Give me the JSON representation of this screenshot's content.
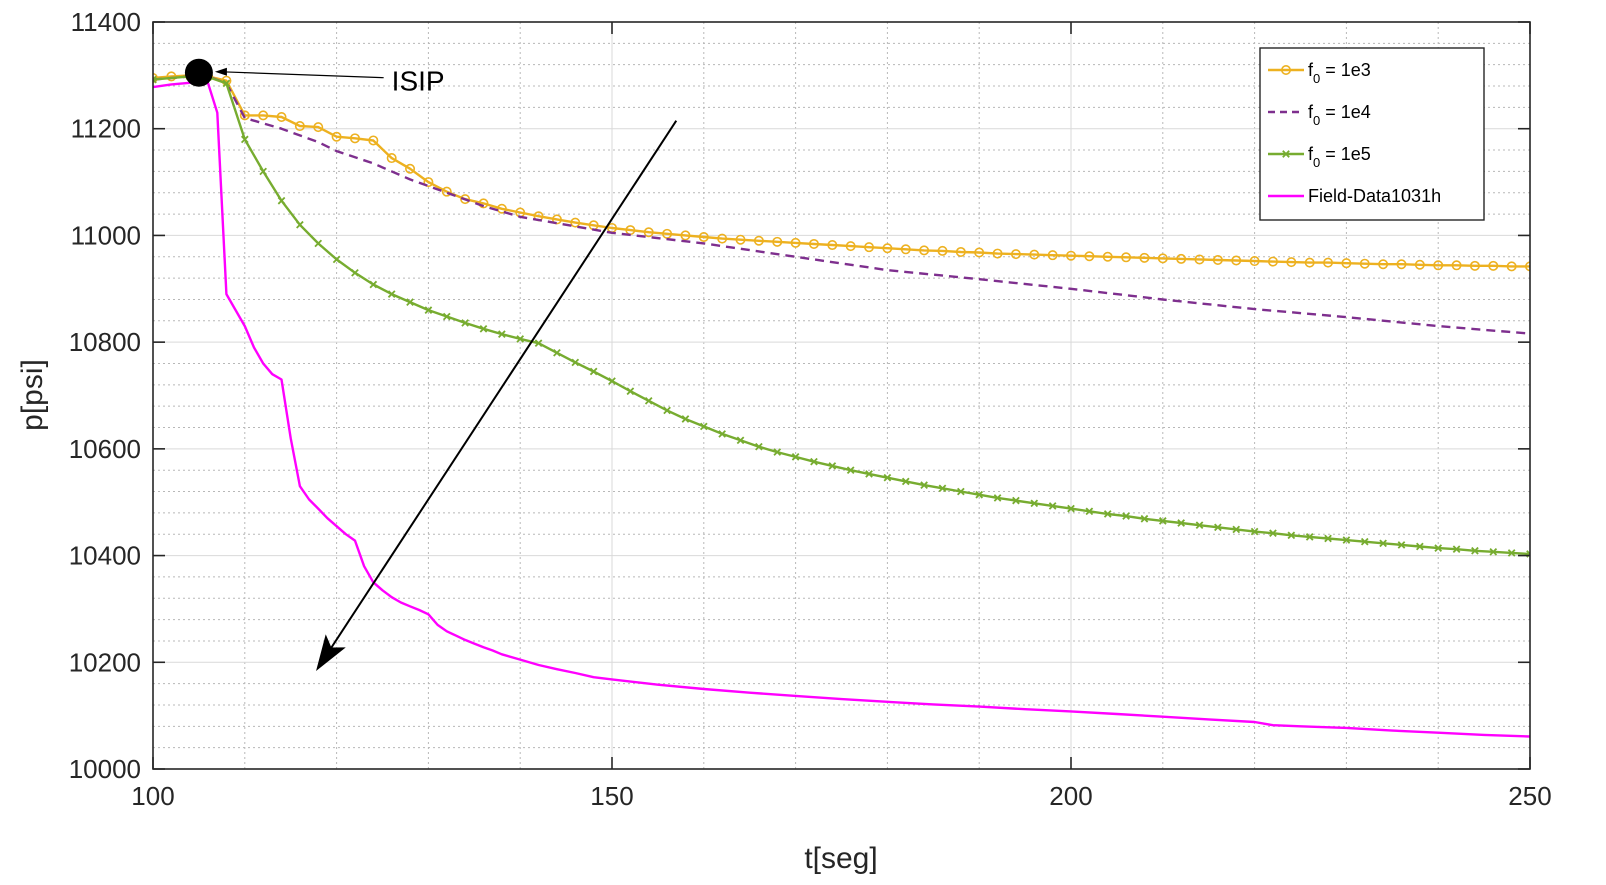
{
  "chart_data": {
    "type": "line",
    "title": "",
    "xlabel": "t[seg]",
    "ylabel": "p[psi]",
    "xlim": [
      100,
      250
    ],
    "ylim": [
      10000,
      11400
    ],
    "x_ticks": [
      100,
      150,
      200,
      250
    ],
    "y_ticks": [
      10000,
      10200,
      10400,
      10600,
      10800,
      11000,
      11200,
      11400
    ],
    "grid": true,
    "minor_grid": true,
    "legend_position": "top-right",
    "series": [
      {
        "name_main": "f",
        "name_sub": "0",
        "name_rest": " = 1e3",
        "color": "#EDB120",
        "line_style": "solid",
        "marker": "circle",
        "points": [
          [
            100,
            11295
          ],
          [
            102,
            11298
          ],
          [
            104,
            11300
          ],
          [
            106,
            11298
          ],
          [
            108,
            11290
          ],
          [
            110,
            11225
          ],
          [
            112,
            11225
          ],
          [
            114,
            11222
          ],
          [
            116,
            11205
          ],
          [
            118,
            11203
          ],
          [
            120,
            11185
          ],
          [
            122,
            11182
          ],
          [
            124,
            11178
          ],
          [
            126,
            11145
          ],
          [
            128,
            11125
          ],
          [
            130,
            11100
          ],
          [
            132,
            11082
          ],
          [
            134,
            11068
          ],
          [
            136,
            11060
          ],
          [
            138,
            11050
          ],
          [
            140,
            11043
          ],
          [
            142,
            11036
          ],
          [
            144,
            11030
          ],
          [
            146,
            11024
          ],
          [
            148,
            11019
          ],
          [
            150,
            11014
          ],
          [
            152,
            11010
          ],
          [
            154,
            11006
          ],
          [
            156,
            11003
          ],
          [
            158,
            11000
          ],
          [
            160,
            10997
          ],
          [
            162,
            10994
          ],
          [
            164,
            10992
          ],
          [
            166,
            10990
          ],
          [
            168,
            10988
          ],
          [
            170,
            10986
          ],
          [
            172,
            10984
          ],
          [
            174,
            10982
          ],
          [
            176,
            10980
          ],
          [
            178,
            10978
          ],
          [
            180,
            10976
          ],
          [
            182,
            10974
          ],
          [
            184,
            10972
          ],
          [
            186,
            10971
          ],
          [
            188,
            10969
          ],
          [
            190,
            10968
          ],
          [
            192,
            10966
          ],
          [
            194,
            10965
          ],
          [
            196,
            10964
          ],
          [
            198,
            10963
          ],
          [
            200,
            10962
          ],
          [
            202,
            10961
          ],
          [
            204,
            10960
          ],
          [
            206,
            10959
          ],
          [
            208,
            10958
          ],
          [
            210,
            10957
          ],
          [
            212,
            10956
          ],
          [
            214,
            10955
          ],
          [
            216,
            10954
          ],
          [
            218,
            10953
          ],
          [
            220,
            10952
          ],
          [
            222,
            10951
          ],
          [
            224,
            10950
          ],
          [
            226,
            10949
          ],
          [
            228,
            10949
          ],
          [
            230,
            10948
          ],
          [
            232,
            10947
          ],
          [
            234,
            10946
          ],
          [
            236,
            10946
          ],
          [
            238,
            10945
          ],
          [
            240,
            10944
          ],
          [
            242,
            10944
          ],
          [
            244,
            10943
          ],
          [
            246,
            10943
          ],
          [
            248,
            10942
          ],
          [
            250,
            10942
          ]
        ]
      },
      {
        "name_main": "f",
        "name_sub": "0",
        "name_rest": " = 1e4",
        "color": "#7E2F8E",
        "line_style": "dashed",
        "marker": "none",
        "points": [
          [
            100,
            11292
          ],
          [
            104,
            11298
          ],
          [
            106,
            11298
          ],
          [
            108,
            11285
          ],
          [
            110,
            11220
          ],
          [
            114,
            11200
          ],
          [
            118,
            11175
          ],
          [
            120,
            11158
          ],
          [
            124,
            11135
          ],
          [
            128,
            11105
          ],
          [
            132,
            11080
          ],
          [
            136,
            11055
          ],
          [
            140,
            11035
          ],
          [
            150,
            11005
          ],
          [
            160,
            10985
          ],
          [
            170,
            10960
          ],
          [
            180,
            10935
          ],
          [
            190,
            10918
          ],
          [
            200,
            10900
          ],
          [
            210,
            10880
          ],
          [
            220,
            10862
          ],
          [
            230,
            10847
          ],
          [
            240,
            10830
          ],
          [
            250,
            10816
          ]
        ]
      },
      {
        "name_main": "f",
        "name_sub": "0",
        "name_rest": " = 1e5",
        "color": "#77AC30",
        "line_style": "solid",
        "marker": "x",
        "points": [
          [
            100,
            11292
          ],
          [
            104,
            11298
          ],
          [
            106,
            11297
          ],
          [
            108,
            11285
          ],
          [
            110,
            11180
          ],
          [
            112,
            11120
          ],
          [
            114,
            11065
          ],
          [
            116,
            11020
          ],
          [
            118,
            10985
          ],
          [
            120,
            10955
          ],
          [
            122,
            10930
          ],
          [
            124,
            10908
          ],
          [
            126,
            10890
          ],
          [
            128,
            10875
          ],
          [
            130,
            10860
          ],
          [
            132,
            10848
          ],
          [
            134,
            10836
          ],
          [
            136,
            10825
          ],
          [
            138,
            10815
          ],
          [
            140,
            10806
          ],
          [
            142,
            10798
          ],
          [
            144,
            10780
          ],
          [
            146,
            10762
          ],
          [
            148,
            10745
          ],
          [
            150,
            10727
          ],
          [
            152,
            10708
          ],
          [
            154,
            10690
          ],
          [
            156,
            10672
          ],
          [
            158,
            10656
          ],
          [
            160,
            10642
          ],
          [
            162,
            10628
          ],
          [
            164,
            10616
          ],
          [
            166,
            10604
          ],
          [
            168,
            10594
          ],
          [
            170,
            10585
          ],
          [
            172,
            10576
          ],
          [
            174,
            10568
          ],
          [
            176,
            10560
          ],
          [
            178,
            10553
          ],
          [
            180,
            10546
          ],
          [
            182,
            10539
          ],
          [
            184,
            10532
          ],
          [
            186,
            10526
          ],
          [
            188,
            10520
          ],
          [
            190,
            10514
          ],
          [
            192,
            10508
          ],
          [
            194,
            10503
          ],
          [
            196,
            10498
          ],
          [
            198,
            10493
          ],
          [
            200,
            10488
          ],
          [
            202,
            10483
          ],
          [
            204,
            10478
          ],
          [
            206,
            10474
          ],
          [
            208,
            10469
          ],
          [
            210,
            10465
          ],
          [
            212,
            10461
          ],
          [
            214,
            10457
          ],
          [
            216,
            10453
          ],
          [
            218,
            10449
          ],
          [
            220,
            10445
          ],
          [
            222,
            10442
          ],
          [
            224,
            10438
          ],
          [
            226,
            10435
          ],
          [
            228,
            10432
          ],
          [
            230,
            10429
          ],
          [
            232,
            10426
          ],
          [
            234,
            10423
          ],
          [
            236,
            10420
          ],
          [
            238,
            10417
          ],
          [
            240,
            10414
          ],
          [
            242,
            10412
          ],
          [
            244,
            10409
          ],
          [
            246,
            10407
          ],
          [
            248,
            10405
          ],
          [
            250,
            10403
          ]
        ]
      },
      {
        "name_main": "Field-Data1031h",
        "name_sub": "",
        "name_rest": "",
        "color": "#FF00FF",
        "line_style": "solid",
        "marker": "none",
        "points": [
          [
            100,
            11278
          ],
          [
            102,
            11283
          ],
          [
            104,
            11286
          ],
          [
            105,
            11287
          ],
          [
            106,
            11285
          ],
          [
            107,
            11230
          ],
          [
            108,
            10890
          ],
          [
            109,
            10860
          ],
          [
            110,
            10830
          ],
          [
            111,
            10790
          ],
          [
            112,
            10760
          ],
          [
            113,
            10740
          ],
          [
            114,
            10730
          ],
          [
            115,
            10620
          ],
          [
            116,
            10530
          ],
          [
            117,
            10505
          ],
          [
            118,
            10488
          ],
          [
            119,
            10470
          ],
          [
            120,
            10455
          ],
          [
            121,
            10440
          ],
          [
            122,
            10428
          ],
          [
            123,
            10380
          ],
          [
            124,
            10350
          ],
          [
            125,
            10335
          ],
          [
            126,
            10322
          ],
          [
            127,
            10312
          ],
          [
            128,
            10305
          ],
          [
            129,
            10298
          ],
          [
            130,
            10290
          ],
          [
            131,
            10270
          ],
          [
            132,
            10258
          ],
          [
            133,
            10250
          ],
          [
            134,
            10242
          ],
          [
            135,
            10235
          ],
          [
            136,
            10228
          ],
          [
            137,
            10222
          ],
          [
            138,
            10215
          ],
          [
            140,
            10205
          ],
          [
            142,
            10195
          ],
          [
            144,
            10187
          ],
          [
            146,
            10180
          ],
          [
            148,
            10172
          ],
          [
            150,
            10168
          ],
          [
            155,
            10158
          ],
          [
            160,
            10150
          ],
          [
            165,
            10143
          ],
          [
            170,
            10137
          ],
          [
            175,
            10131
          ],
          [
            180,
            10126
          ],
          [
            185,
            10121
          ],
          [
            190,
            10117
          ],
          [
            195,
            10112
          ],
          [
            200,
            10108
          ],
          [
            205,
            10103
          ],
          [
            210,
            10098
          ],
          [
            215,
            10093
          ],
          [
            220,
            10088
          ],
          [
            222,
            10082
          ],
          [
            225,
            10080
          ],
          [
            230,
            10077
          ],
          [
            235,
            10072
          ],
          [
            240,
            10068
          ],
          [
            245,
            10064
          ],
          [
            250,
            10061
          ]
        ]
      }
    ],
    "annotations": [
      {
        "type": "marker",
        "label": "ISIP",
        "point": [
          105,
          11305
        ],
        "text_at": [
          126,
          11290
        ]
      },
      {
        "type": "arrow",
        "from": [
          157,
          11215
        ],
        "to": [
          118,
          10190
        ]
      }
    ]
  }
}
